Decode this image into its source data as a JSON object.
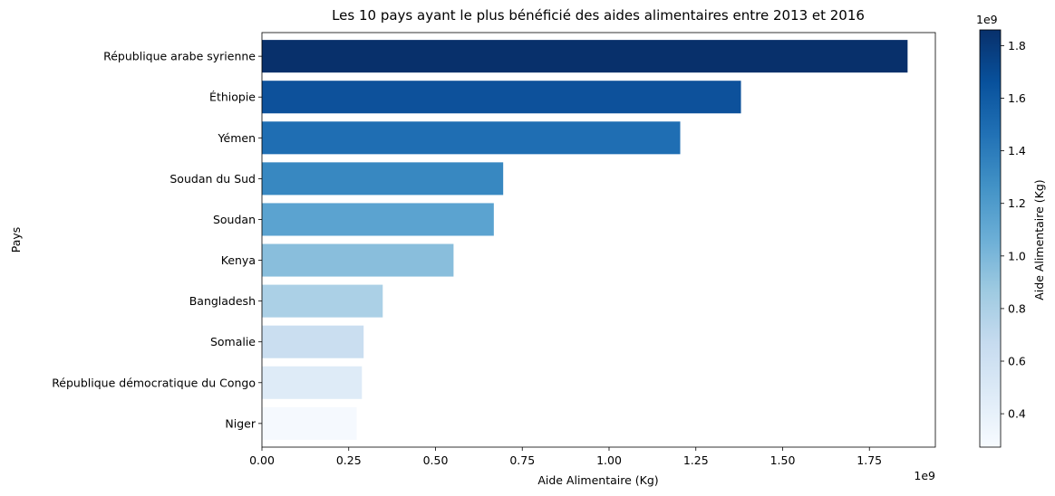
{
  "chart_data": {
    "type": "bar",
    "orientation": "horizontal",
    "title": "Les 10 pays ayant le plus bénéficié des aides alimentaires entre 2013 et 2016",
    "xlabel": "Aide Alimentaire (Kg)",
    "ylabel": "Pays",
    "x_offset_label": "1e9",
    "xlim": [
      0,
      1.94
    ],
    "x_ticks": [
      0.0,
      0.25,
      0.5,
      0.75,
      1.0,
      1.25,
      1.5,
      1.75
    ],
    "x_tick_labels": [
      "0.00",
      "0.25",
      "0.50",
      "0.75",
      "1.00",
      "1.25",
      "1.50",
      "1.75"
    ],
    "categories": [
      "République arabe syrienne",
      "Éthiopie",
      "Yémen",
      "Soudan du Sud",
      "Soudan",
      "Kenya",
      "Bangladesh",
      "Somalie",
      "République démocratique du Congo",
      "Niger"
    ],
    "values": [
      1.86,
      1.38,
      1.205,
      0.695,
      0.668,
      0.552,
      0.348,
      0.293,
      0.288,
      0.273
    ],
    "colors": [
      "#08306b",
      "#0d519b",
      "#1f6eb3",
      "#3888c1",
      "#5ba3d0",
      "#89bedc",
      "#abd0e6",
      "#cadef0",
      "#deebf7",
      "#f5f9fe"
    ],
    "colorbar": {
      "label": "Aide Alimentaire (Kg)",
      "offset_label": "1e9",
      "range": [
        0.273,
        1.86
      ],
      "ticks": [
        0.4,
        0.6,
        0.8,
        1.0,
        1.2,
        1.4,
        1.6,
        1.8
      ],
      "tick_labels": [
        "0.4",
        "0.6",
        "0.8",
        "1.0",
        "1.2",
        "1.4",
        "1.6",
        "1.8"
      ],
      "colormap_stops": [
        "#f7fbff",
        "#deebf7",
        "#c6dbef",
        "#9ecae1",
        "#6baed6",
        "#4292c6",
        "#2171b5",
        "#08519c",
        "#08306b"
      ]
    },
    "grid": false,
    "legend": "none"
  }
}
